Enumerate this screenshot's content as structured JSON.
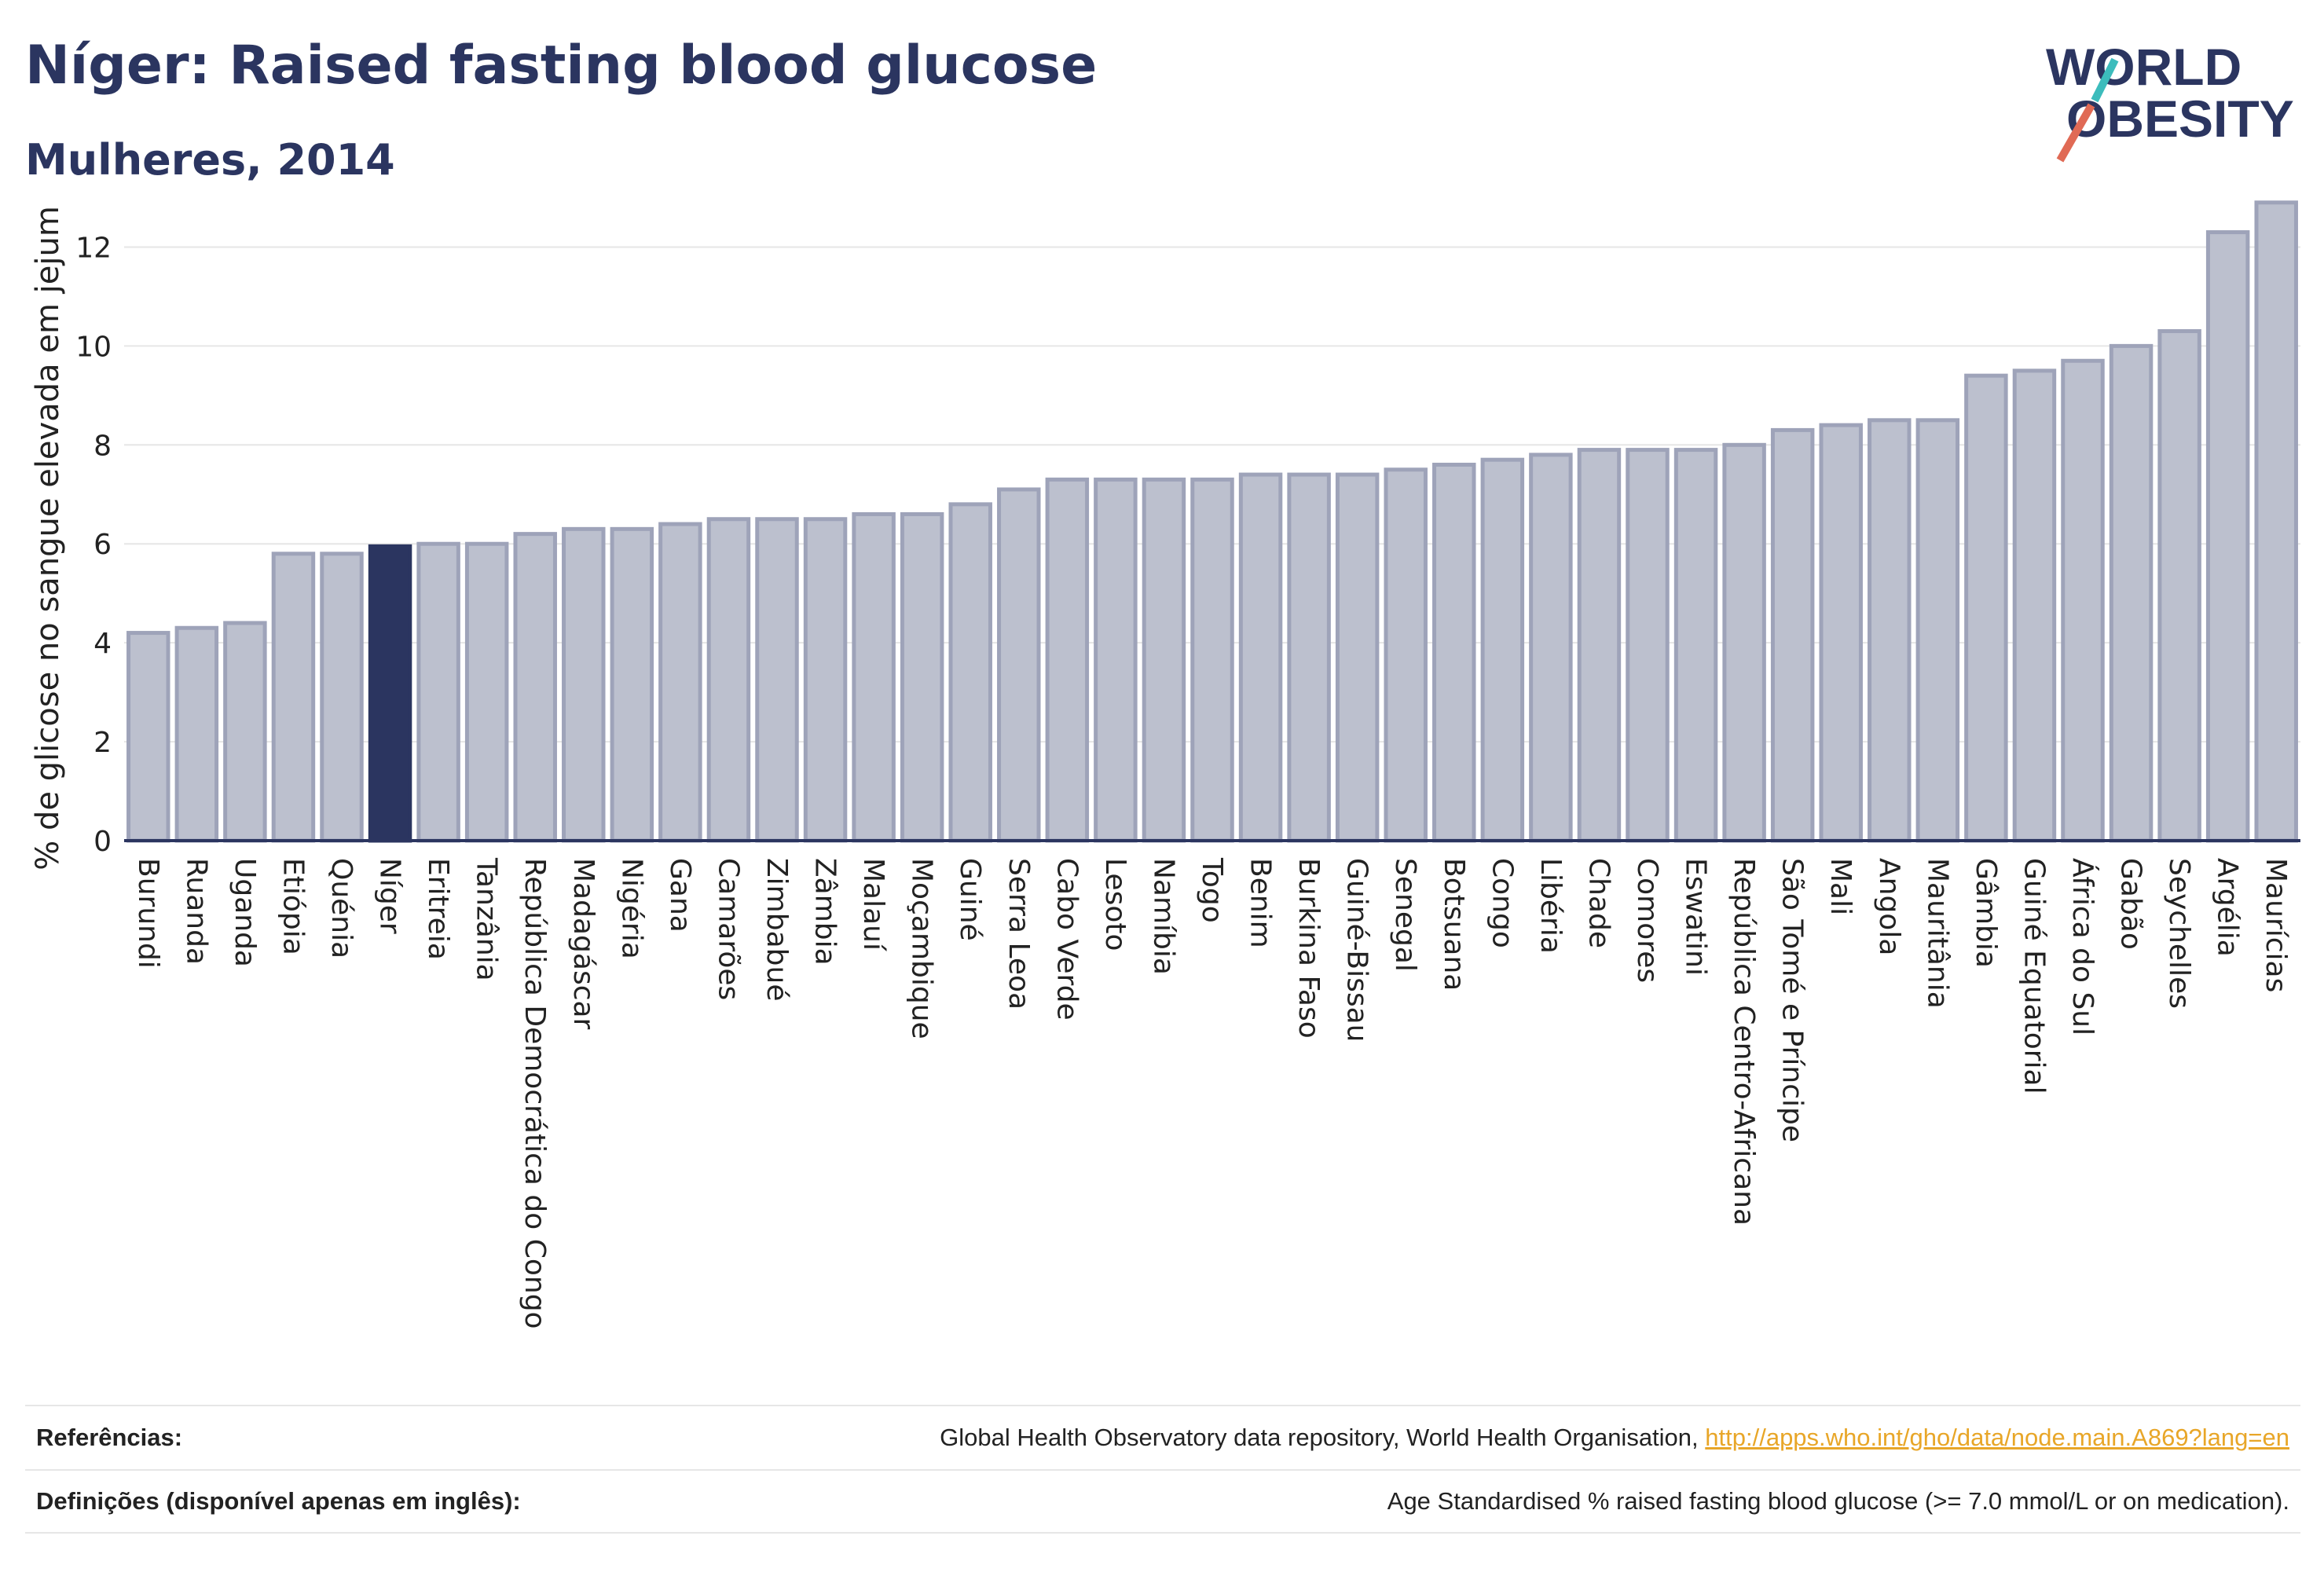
{
  "header": {
    "title": "Níger: Raised fasting blood glucose",
    "subtitle": "Mulheres, 2014"
  },
  "logo": {
    "line1": "WORLD",
    "line2": "OBESITY",
    "text_color": "#2b3560",
    "slash_colors": [
      "#e06a55",
      "#3cbcbc"
    ]
  },
  "colors": {
    "bar_default": "#bcc0ce",
    "bar_default_stroke": "#9ea3b9",
    "bar_highlight": "#2b3560",
    "grid": "#e6e6e6",
    "axis_text": "#222222"
  },
  "chart_data": {
    "type": "bar",
    "ylabel": "% de glicose no sangue elevada em jejum",
    "xlabel": "",
    "ylim": [
      0,
      13.5
    ],
    "yticks": [
      0,
      2,
      4,
      6,
      8,
      10,
      12
    ],
    "grid": true,
    "highlight": "Níger",
    "categories": [
      "Burundi",
      "Ruanda",
      "Uganda",
      "Etiópia",
      "Quénia",
      "Níger",
      "Eritreia",
      "Tanzânia",
      "República Democrática do Congo",
      "Madagáscar",
      "Nigéria",
      "Gana",
      "Camarões",
      "Zimbabué",
      "Zâmbia",
      "Malauí",
      "Moçambique",
      "Guiné",
      "Serra Leoa",
      "Cabo Verde",
      "Lesoto",
      "Namíbia",
      "Togo",
      "Benim",
      "Burkina Faso",
      "Guiné-Bissau",
      "Senegal",
      "Botsuana",
      "Congo",
      "Libéria",
      "Chade",
      "Comores",
      "Eswatini",
      "República Centro-Africana",
      "São Tomé e Príncipe",
      "Mali",
      "Angola",
      "Mauritânia",
      "Gâmbia",
      "Guiné Equatorial",
      "África do Sul",
      "Gabão",
      "Seychelles",
      "Argélia",
      "Maurícias"
    ],
    "values": [
      4.2,
      4.3,
      4.4,
      5.8,
      5.8,
      5.95,
      6.0,
      6.0,
      6.2,
      6.3,
      6.3,
      6.4,
      6.5,
      6.5,
      6.5,
      6.6,
      6.6,
      6.8,
      7.1,
      7.3,
      7.3,
      7.3,
      7.3,
      7.4,
      7.4,
      7.4,
      7.5,
      7.6,
      7.7,
      7.8,
      7.9,
      7.9,
      7.9,
      8.0,
      8.3,
      8.4,
      8.5,
      8.5,
      9.4,
      9.5,
      9.7,
      10.0,
      10.3,
      12.3,
      12.9
    ]
  },
  "references": {
    "label": "Referências:",
    "text": "Global Health Observatory data repository, World Health Organisation,",
    "link": "http://apps.who.int/gho/data/node.main.A869?lang=en"
  },
  "definitions": {
    "label": "Definições (disponível apenas em inglês):",
    "text": "Age Standardised % raised fasting blood glucose (>= 7.0 mmol/L or on medication)."
  }
}
